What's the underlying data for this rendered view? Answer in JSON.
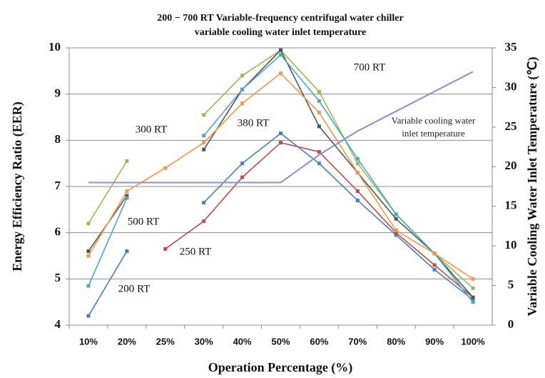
{
  "chart_data": {
    "type": "line",
    "title": "200 − 700 RT Variable-frequency centrifugal water chiller",
    "subtitle": "variable cooling water inlet temperature",
    "x_label": "Operation Percentage (%)",
    "y_label": "Energy Efficiency Ratio (EER)",
    "y2_label": "Variable Cooling Water Inlet Temperature (℃)",
    "categories": [
      "10%",
      "20%",
      "25%",
      "30%",
      "40%",
      "50%",
      "60%",
      "70%",
      "80%",
      "90%",
      "100%"
    ],
    "ylim": [
      4,
      10
    ],
    "yticks": [
      4,
      5,
      6,
      7,
      8,
      9,
      10
    ],
    "y2lim": [
      0,
      35
    ],
    "y2ticks": [
      0,
      5,
      10,
      15,
      20,
      25,
      30,
      35
    ],
    "grid": true,
    "series": [
      {
        "name": "200 RT",
        "color": "#4a7ebb",
        "values": [
          4.2,
          5.6,
          null,
          6.65,
          7.5,
          8.15,
          7.5,
          6.7,
          5.95,
          5.2,
          4.55
        ]
      },
      {
        "name": "250 RT",
        "color": "#be4b48",
        "values": [
          null,
          null,
          5.65,
          6.25,
          7.2,
          7.95,
          7.75,
          6.9,
          6.0,
          5.3,
          4.6
        ]
      },
      {
        "name": "300 RT",
        "color": "#98b954",
        "values": [
          6.2,
          7.55,
          null,
          8.55,
          9.4,
          9.95,
          9.05,
          7.5,
          6.4,
          5.55,
          4.8
        ]
      },
      {
        "name": "380 RT",
        "color": "#555555",
        "values": [
          5.6,
          6.8,
          null,
          7.8,
          9.1,
          9.95,
          8.3,
          7.3,
          6.3,
          5.55,
          4.6
        ]
      },
      {
        "name": "500 RT",
        "color": "#46aac5",
        "values": [
          4.85,
          6.75,
          null,
          8.1,
          9.1,
          9.85,
          8.85,
          7.6,
          6.4,
          5.55,
          4.5
        ]
      },
      {
        "name": "700 RT",
        "color": "#f79646",
        "values": [
          5.5,
          6.9,
          7.4,
          7.95,
          8.8,
          9.45,
          8.6,
          7.3,
          6.05,
          5.55,
          5.0
        ]
      },
      {
        "name": "Variable cooling water inlet temperature",
        "color": "#8a8fd0",
        "axis": "y2",
        "values": [
          18,
          18,
          18,
          18,
          18,
          18,
          21.5,
          24.5,
          27,
          29.5,
          32
        ]
      }
    ]
  }
}
